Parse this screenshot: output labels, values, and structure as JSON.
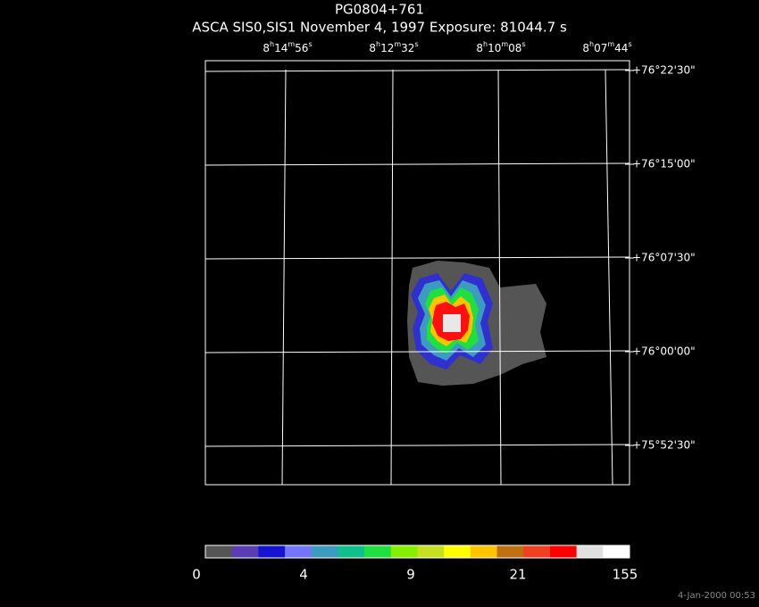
{
  "header": {
    "title": "PG0804+761",
    "subtitle": "ASCA SIS0,SIS1 November 4, 1997 Exposure: 81044.7 s"
  },
  "ra_labels": [
    "8h14m56s",
    "8h12m32s",
    "8h10m08s",
    "8h07m44s"
  ],
  "dec_labels": [
    "+76°22'30\"",
    "+76°15'00\"",
    "+76°07'30\"",
    "+76°00'00\"",
    "+75°52'30\""
  ],
  "colorbar": {
    "colors": [
      "#555555",
      "#5a3cb4",
      "#1414d2",
      "#7474ff",
      "#3c9cc0",
      "#10c08c",
      "#20e040",
      "#84f000",
      "#c4e020",
      "#ffff00",
      "#ffc400",
      "#c07010",
      "#f04020",
      "#ff0000",
      "#e0e0e0",
      "#ffffff"
    ],
    "ticks": [
      0,
      4,
      9,
      21,
      155
    ]
  },
  "footer": "4-Jan-2000 00:53"
}
